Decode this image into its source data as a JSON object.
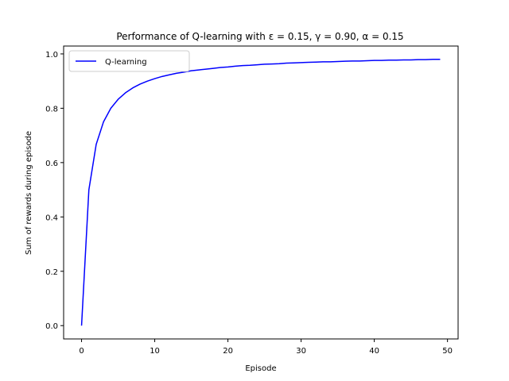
{
  "chart_data": {
    "type": "line",
    "title": "Performance of Q-learning with ε =  0.15, γ =  0.90, α =  0.15",
    "xlabel": "Episode",
    "ylabel": "Sum of rewards during episode",
    "xlim": [
      -2.45,
      51.45
    ],
    "ylim": [
      -0.049,
      1.029
    ],
    "xticks": [
      0,
      10,
      20,
      30,
      40,
      50
    ],
    "xtick_labels": [
      "0",
      "10",
      "20",
      "30",
      "40",
      "50"
    ],
    "yticks": [
      0.0,
      0.2,
      0.4,
      0.6,
      0.8,
      1.0
    ],
    "ytick_labels": [
      "0.0",
      "0.2",
      "0.4",
      "0.6",
      "0.8",
      "1.0"
    ],
    "grid": false,
    "legend_position": "upper-left",
    "series": [
      {
        "name": "Q-learning",
        "color": "#0000ff",
        "x": [
          0,
          1,
          2,
          3,
          4,
          5,
          6,
          7,
          8,
          9,
          10,
          11,
          12,
          13,
          14,
          15,
          16,
          17,
          18,
          19,
          20,
          21,
          22,
          23,
          24,
          25,
          26,
          27,
          28,
          29,
          30,
          31,
          32,
          33,
          34,
          35,
          36,
          37,
          38,
          39,
          40,
          41,
          42,
          43,
          44,
          45,
          46,
          47,
          48,
          49
        ],
        "y": [
          0.0,
          0.5,
          0.667,
          0.75,
          0.8,
          0.833,
          0.857,
          0.875,
          0.889,
          0.9,
          0.909,
          0.917,
          0.923,
          0.929,
          0.933,
          0.938,
          0.941,
          0.944,
          0.947,
          0.95,
          0.952,
          0.955,
          0.957,
          0.958,
          0.96,
          0.962,
          0.963,
          0.964,
          0.966,
          0.967,
          0.968,
          0.969,
          0.97,
          0.971,
          0.971,
          0.972,
          0.973,
          0.974,
          0.974,
          0.975,
          0.976,
          0.976,
          0.977,
          0.977,
          0.978,
          0.978,
          0.979,
          0.979,
          0.98,
          0.98
        ]
      }
    ]
  }
}
